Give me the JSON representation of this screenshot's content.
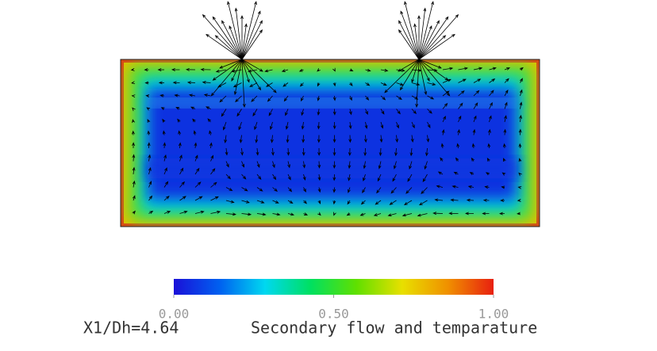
{
  "chart_data": {
    "type": "colorbar",
    "colormap": [
      "#1a10d8",
      "#0060f0",
      "#00d8f0",
      "#00e060",
      "#60e000",
      "#e8e000",
      "#f09000",
      "#e82010"
    ],
    "clim": [
      0,
      1
    ],
    "ticks": [
      {
        "value": 0,
        "label": "0.00"
      },
      {
        "value": 0.5,
        "label": "0.50"
      },
      {
        "value": 1,
        "label": "1.00"
      }
    ],
    "annotation": "X1/Dh=4.64",
    "title": "Secondary flow and temparature"
  }
}
